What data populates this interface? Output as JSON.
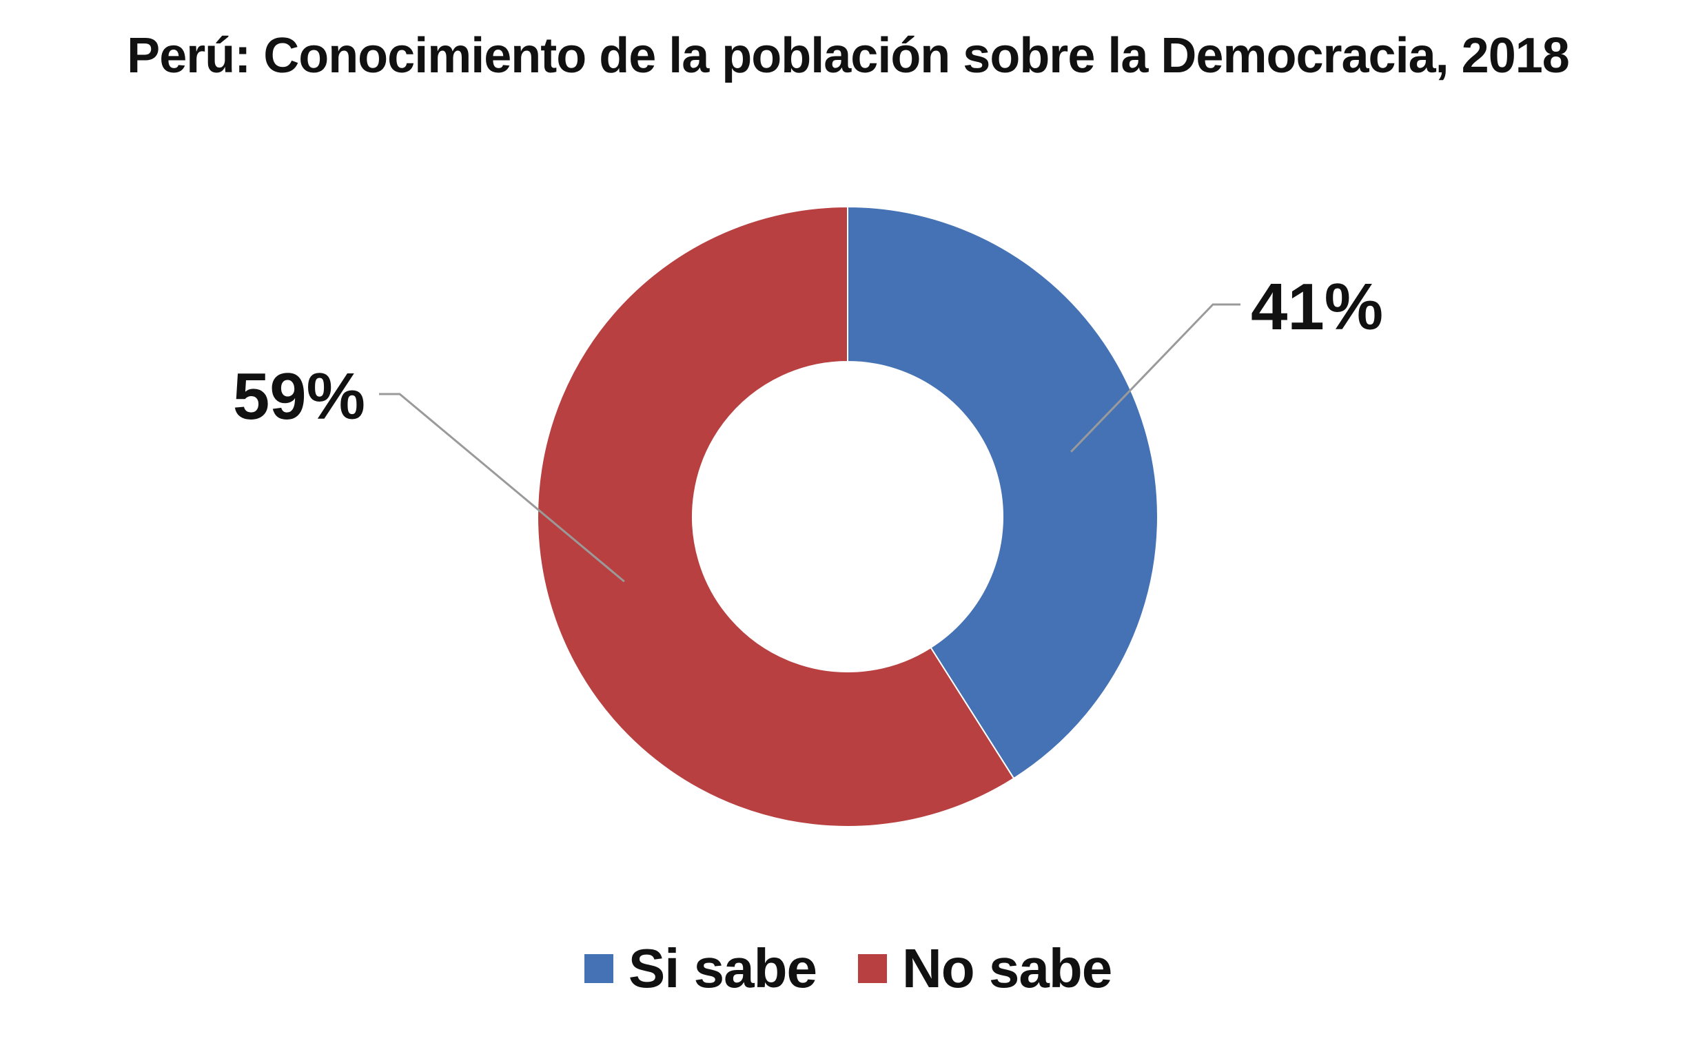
{
  "chart_data": {
    "type": "pie",
    "variant": "donut",
    "title": "Perú: Conocimiento de la población sobre la Democracia, 2018",
    "legend_position": "bottom",
    "categories": [
      "Si sabe",
      "No sabe"
    ],
    "values": [
      41,
      59
    ],
    "labels": [
      "41%",
      "59%"
    ],
    "colors": [
      "#4472B4",
      "#B84040"
    ]
  }
}
